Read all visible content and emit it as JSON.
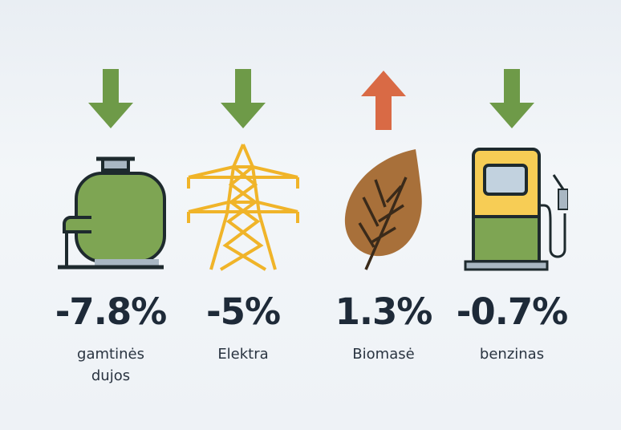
{
  "colors": {
    "down": "#6e9a48",
    "up": "#d96a45",
    "text": "#1e2a38"
  },
  "items": [
    {
      "icon": "gas-tank-icon",
      "direction": "down",
      "value": "-7.8%",
      "label_line1": "gamtinės",
      "label_line2": "dujos"
    },
    {
      "icon": "power-pylon-icon",
      "direction": "down",
      "value": "-5%",
      "label_line1": "Elektra",
      "label_line2": ""
    },
    {
      "icon": "leaf-icon",
      "direction": "up",
      "value": "1.3%",
      "label_line1": "Biomasė",
      "label_line2": ""
    },
    {
      "icon": "fuel-pump-icon",
      "direction": "down",
      "value": "-0.7%",
      "label_line1": "benzinas",
      "label_line2": ""
    }
  ]
}
